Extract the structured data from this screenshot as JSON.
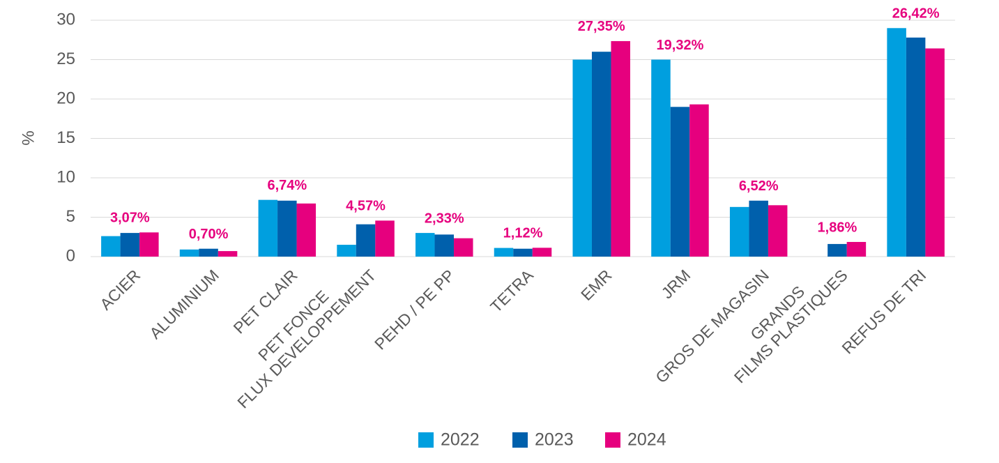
{
  "chart_data": {
    "type": "bar",
    "y_label": "%",
    "categories": [
      [
        "ACIER"
      ],
      [
        "ALUMINIUM"
      ],
      [
        "PET CLAIR"
      ],
      [
        "PET FONCE",
        "FLUX DEVELOPPEMENT"
      ],
      [
        "PEHD / PE PP"
      ],
      [
        "TETRA"
      ],
      [
        "EMR"
      ],
      [
        "JRM"
      ],
      [
        "GROS DE MAGASIN"
      ],
      [
        "GRANDS",
        "FILMS PLASTIQUES"
      ],
      [
        "REFUS DE TRI"
      ]
    ],
    "series": [
      {
        "name": "2022",
        "color": "#009fdf",
        "values": [
          2.6,
          0.9,
          7.2,
          1.5,
          3.0,
          1.1,
          25,
          25,
          6.3,
          null,
          29
        ]
      },
      {
        "name": "2023",
        "color": "#0060ac",
        "values": [
          3.0,
          1.0,
          7.1,
          4.1,
          2.8,
          1.0,
          26,
          19,
          7.1,
          1.6,
          27.8
        ]
      },
      {
        "name": "2024",
        "color": "#e6007e",
        "values": [
          3.07,
          0.7,
          6.74,
          4.57,
          2.33,
          1.12,
          27.35,
          19.32,
          6.52,
          1.86,
          26.42
        ],
        "value_labels": [
          "3,07%",
          "0,70%",
          "6,74%",
          "4,57%",
          "2,33%",
          "1,12%",
          "27,35%",
          "19,32%",
          "6,52%",
          "1,86%",
          "26,42%"
        ]
      }
    ],
    "ylim": [
      0,
      30
    ],
    "yticks": [
      0,
      5,
      10,
      15,
      20,
      25,
      30
    ],
    "grid": true,
    "legend": "bottom"
  }
}
